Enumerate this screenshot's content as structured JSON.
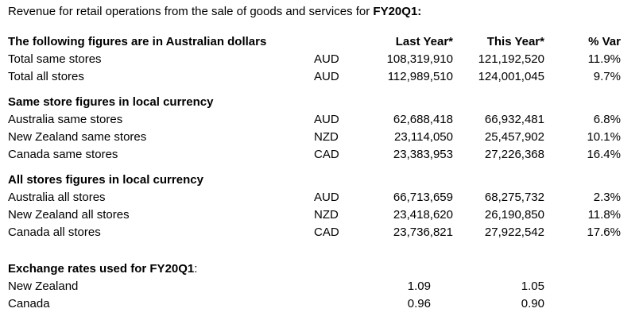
{
  "colors": {
    "text": "#000000",
    "background": "#ffffff"
  },
  "title": {
    "prefix": "Revenue for retail operations from the sale of goods and services for ",
    "period": "FY20Q1:"
  },
  "table": {
    "header": {
      "label": "The following figures are in Australian dollars",
      "last_year": "Last Year*",
      "this_year": "This Year*",
      "var": "% Var"
    },
    "sections": [
      {
        "heading": "",
        "rows": [
          {
            "label": "Total same stores",
            "currency": "AUD",
            "last_year": "108,319,910",
            "this_year": "121,192,520",
            "var": "11.9%"
          },
          {
            "label": "Total all stores",
            "currency": "AUD",
            "last_year": "112,989,510",
            "this_year": "124,001,045",
            "var": "9.7%"
          }
        ]
      },
      {
        "heading": "Same store figures in local currency",
        "rows": [
          {
            "label": "Australia same stores",
            "currency": "AUD",
            "last_year": "62,688,418",
            "this_year": "66,932,481",
            "var": "6.8%"
          },
          {
            "label": "New Zealand same stores",
            "currency": "NZD",
            "last_year": "23,114,050",
            "this_year": "25,457,902",
            "var": "10.1%"
          },
          {
            "label": "Canada same stores",
            "currency": "CAD",
            "last_year": "23,383,953",
            "this_year": "27,226,368",
            "var": "16.4%"
          }
        ]
      },
      {
        "heading": "All stores figures in local currency",
        "rows": [
          {
            "label": "Australia all stores",
            "currency": "AUD",
            "last_year": "66,713,659",
            "this_year": "68,275,732",
            "var": "2.3%"
          },
          {
            "label": "New Zealand all stores",
            "currency": "NZD",
            "last_year": "23,418,620",
            "this_year": "26,190,850",
            "var": "11.8%"
          },
          {
            "label": "Canada all stores",
            "currency": "CAD",
            "last_year": "23,736,821",
            "this_year": "27,922,542",
            "var": "17.6%"
          }
        ]
      }
    ],
    "exchange": {
      "heading": "Exchange rates used for FY20Q1",
      "heading_suffix": ":",
      "rows": [
        {
          "label": "New Zealand",
          "last_year": "1.09",
          "this_year": "1.05"
        },
        {
          "label": "Canada",
          "last_year": "0.96",
          "this_year": "0.90"
        }
      ]
    }
  }
}
